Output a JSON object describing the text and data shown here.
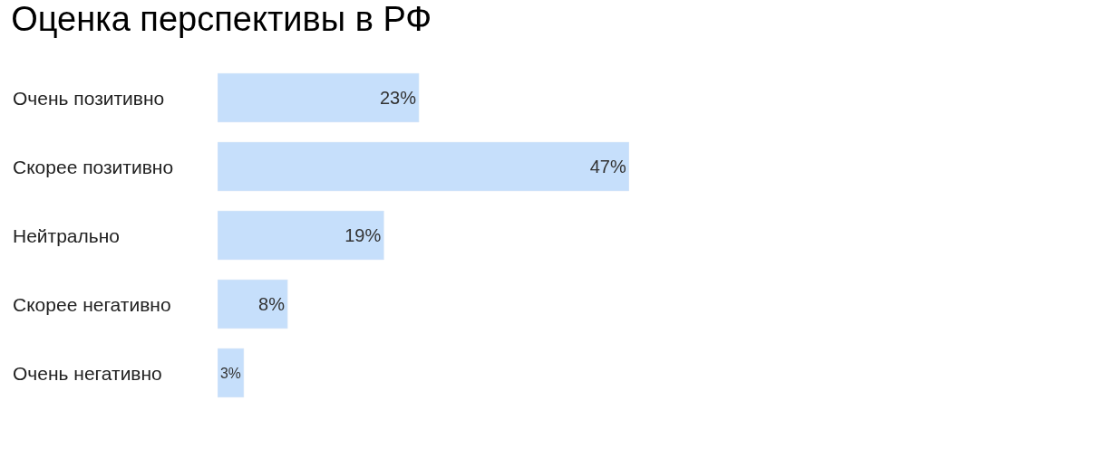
{
  "chart_data": {
    "type": "bar",
    "orientation": "horizontal",
    "title": "Оценка перспективы в РФ",
    "categories": [
      "Очень позитивно",
      "Скорее позитивно",
      "Нейтрально",
      "Скорее негативно",
      "Очень негативно"
    ],
    "values": [
      23,
      47,
      19,
      8,
      3
    ],
    "value_labels": [
      "23%",
      "47%",
      "19%",
      "8%",
      "3%"
    ],
    "color": "#c6dffb"
  }
}
